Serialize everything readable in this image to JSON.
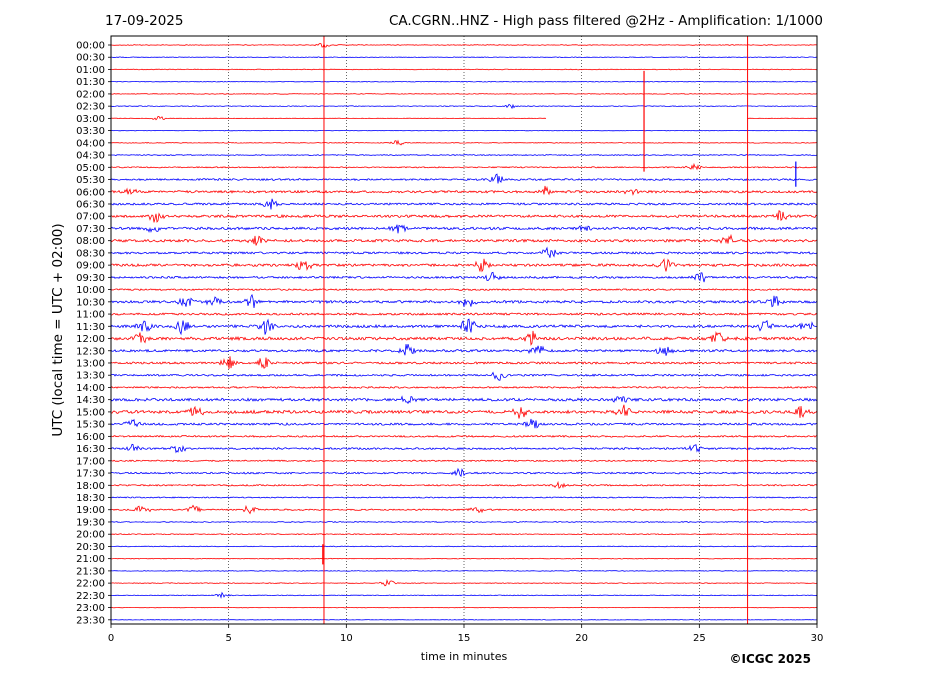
{
  "header": {
    "date": "17-09-2025",
    "title": "CA.CGRN..HNZ - High pass filtered @2Hz - Amplification: 1/1000"
  },
  "footer": {
    "copyright": "©ICGC 2025"
  },
  "colors": {
    "trace_a": "#ff0000",
    "trace_b": "#0000ff",
    "grid": "#000000",
    "frame": "#000000"
  },
  "chart_data": {
    "type": "line",
    "title": "CA.CGRN..HNZ - High pass filtered @2Hz - Amplification: 1/1000",
    "xlabel": "time in minutes",
    "ylabel": "UTC (local time = UTC + 02:00)",
    "xlim": [
      0,
      30
    ],
    "x_ticks": [
      0,
      5,
      10,
      15,
      20,
      25,
      30
    ],
    "x_tick_labels": [
      "0",
      "5",
      "10",
      "15",
      "20",
      "25",
      "30"
    ],
    "grid_x": "dotted vertical lines at 5, 10, 15, 20, 25",
    "rows": [
      "00:00",
      "00:30",
      "01:00",
      "01:30",
      "02:00",
      "02:30",
      "03:00",
      "03:30",
      "04:00",
      "04:30",
      "05:00",
      "05:30",
      "06:00",
      "06:30",
      "07:00",
      "07:30",
      "08:00",
      "08:30",
      "09:00",
      "09:30",
      "10:00",
      "10:30",
      "11:00",
      "11:30",
      "12:00",
      "12:30",
      "13:00",
      "13:30",
      "14:00",
      "14:30",
      "15:00",
      "15:30",
      "16:00",
      "16:30",
      "17:00",
      "17:30",
      "18:00",
      "18:30",
      "19:00",
      "19:30",
      "20:00",
      "20:30",
      "21:00",
      "21:30",
      "22:00",
      "22:30",
      "23:00",
      "23:30"
    ],
    "row_colors": "alternating red and blue starting with red at 00:00",
    "noise_level": [
      0.3,
      0.3,
      0.3,
      0.3,
      0.3,
      0.3,
      0.2,
      0.2,
      0.3,
      0.4,
      0.5,
      0.8,
      1.0,
      0.9,
      1.1,
      1.1,
      1.1,
      0.9,
      1.1,
      0.9,
      0.7,
      1.1,
      0.9,
      1.2,
      1.3,
      1.0,
      0.9,
      0.8,
      0.7,
      1.2,
      1.3,
      0.9,
      0.7,
      0.8,
      0.6,
      0.7,
      0.6,
      0.5,
      0.6,
      0.4,
      0.4,
      0.3,
      0.3,
      0.3,
      0.3,
      0.3,
      0.2,
      0.2
    ],
    "data_gap": {
      "row": "03:00",
      "from_minute": 18.5,
      "to_minute": 27.0
    },
    "spikes": [
      {
        "row": "04:00",
        "minute": 22.65,
        "amplitude": 6.0
      },
      {
        "row": "21:00",
        "minute": 9.0,
        "amplitude": 1.2
      },
      {
        "row": "05:30",
        "minute": 29.1,
        "amplitude": 1.5
      }
    ],
    "bursts": [
      {
        "row": "00:00",
        "minute": 9.0,
        "amplitude": 0.6
      },
      {
        "row": "02:30",
        "minute": 17.0,
        "amplitude": 0.5
      },
      {
        "row": "03:00",
        "minute": 2.0,
        "amplitude": 0.4
      },
      {
        "row": "04:00",
        "minute": 12.2,
        "amplitude": 0.6
      },
      {
        "row": "05:00",
        "minute": 24.8,
        "amplitude": 0.6
      },
      {
        "row": "05:30",
        "minute": 16.4,
        "amplitude": 1.0
      },
      {
        "row": "06:00",
        "minute": 0.8,
        "amplitude": 0.8
      },
      {
        "row": "06:00",
        "minute": 18.4,
        "amplitude": 1.0
      },
      {
        "row": "06:00",
        "minute": 22.2,
        "amplitude": 1.0
      },
      {
        "row": "06:30",
        "minute": 6.8,
        "amplitude": 1.2
      },
      {
        "row": "07:00",
        "minute": 1.9,
        "amplitude": 1.2
      },
      {
        "row": "07:00",
        "minute": 28.4,
        "amplitude": 1.2
      },
      {
        "row": "07:30",
        "minute": 1.8,
        "amplitude": 1.1
      },
      {
        "row": "07:30",
        "minute": 12.2,
        "amplitude": 1.3
      },
      {
        "row": "07:30",
        "minute": 20.1,
        "amplitude": 1.2
      },
      {
        "row": "08:00",
        "minute": 6.2,
        "amplitude": 1.3
      },
      {
        "row": "08:00",
        "minute": 26.2,
        "amplitude": 1.2
      },
      {
        "row": "08:30",
        "minute": 18.6,
        "amplitude": 1.2
      },
      {
        "row": "09:00",
        "minute": 8.2,
        "amplitude": 1.5
      },
      {
        "row": "09:00",
        "minute": 15.8,
        "amplitude": 1.5
      },
      {
        "row": "09:00",
        "minute": 23.6,
        "amplitude": 1.2
      },
      {
        "row": "09:30",
        "minute": 16.2,
        "amplitude": 1.0
      },
      {
        "row": "09:30",
        "minute": 25.1,
        "amplitude": 1.0
      },
      {
        "row": "10:30",
        "minute": 3.2,
        "amplitude": 1.3
      },
      {
        "row": "10:30",
        "minute": 4.4,
        "amplitude": 1.3
      },
      {
        "row": "10:30",
        "minute": 6.0,
        "amplitude": 1.2
      },
      {
        "row": "10:30",
        "minute": 15.2,
        "amplitude": 1.6
      },
      {
        "row": "10:30",
        "minute": 28.2,
        "amplitude": 1.1
      },
      {
        "row": "11:30",
        "minute": 1.4,
        "amplitude": 1.5
      },
      {
        "row": "11:30",
        "minute": 3.0,
        "amplitude": 1.5
      },
      {
        "row": "11:30",
        "minute": 6.6,
        "amplitude": 1.6
      },
      {
        "row": "11:30",
        "minute": 15.2,
        "amplitude": 1.8
      },
      {
        "row": "11:30",
        "minute": 27.8,
        "amplitude": 1.3
      },
      {
        "row": "11:30",
        "minute": 29.6,
        "amplitude": 1.3
      },
      {
        "row": "12:00",
        "minute": 1.2,
        "amplitude": 1.3
      },
      {
        "row": "12:00",
        "minute": 17.9,
        "amplitude": 1.3
      },
      {
        "row": "12:00",
        "minute": 25.8,
        "amplitude": 1.2
      },
      {
        "row": "12:30",
        "minute": 12.6,
        "amplitude": 1.4
      },
      {
        "row": "12:30",
        "minute": 18.1,
        "amplitude": 1.2
      },
      {
        "row": "12:30",
        "minute": 23.5,
        "amplitude": 1.3
      },
      {
        "row": "13:00",
        "minute": 5.0,
        "amplitude": 1.3
      },
      {
        "row": "13:00",
        "minute": 6.5,
        "amplitude": 1.3
      },
      {
        "row": "13:30",
        "minute": 16.5,
        "amplitude": 1.2
      },
      {
        "row": "14:30",
        "minute": 12.6,
        "amplitude": 1.0
      },
      {
        "row": "14:30",
        "minute": 21.7,
        "amplitude": 1.0
      },
      {
        "row": "15:00",
        "minute": 3.6,
        "amplitude": 1.1
      },
      {
        "row": "15:00",
        "minute": 17.4,
        "amplitude": 1.3
      },
      {
        "row": "15:00",
        "minute": 21.8,
        "amplitude": 1.2
      },
      {
        "row": "15:00",
        "minute": 29.3,
        "amplitude": 1.2
      },
      {
        "row": "15:30",
        "minute": 0.9,
        "amplitude": 0.9
      },
      {
        "row": "15:30",
        "minute": 17.9,
        "amplitude": 1.2
      },
      {
        "row": "16:30",
        "minute": 0.9,
        "amplitude": 1.0
      },
      {
        "row": "16:30",
        "minute": 2.9,
        "amplitude": 0.9
      },
      {
        "row": "16:30",
        "minute": 24.8,
        "amplitude": 1.1
      },
      {
        "row": "17:30",
        "minute": 14.8,
        "amplitude": 0.8
      },
      {
        "row": "18:00",
        "minute": 19.0,
        "amplitude": 0.8
      },
      {
        "row": "19:00",
        "minute": 1.3,
        "amplitude": 1.0
      },
      {
        "row": "19:00",
        "minute": 3.5,
        "amplitude": 1.0
      },
      {
        "row": "19:00",
        "minute": 5.9,
        "amplitude": 1.0
      },
      {
        "row": "19:00",
        "minute": 15.5,
        "amplitude": 1.0
      },
      {
        "row": "22:00",
        "minute": 11.8,
        "amplitude": 0.7
      },
      {
        "row": "22:30",
        "minute": 4.7,
        "amplitude": 0.5
      }
    ]
  }
}
